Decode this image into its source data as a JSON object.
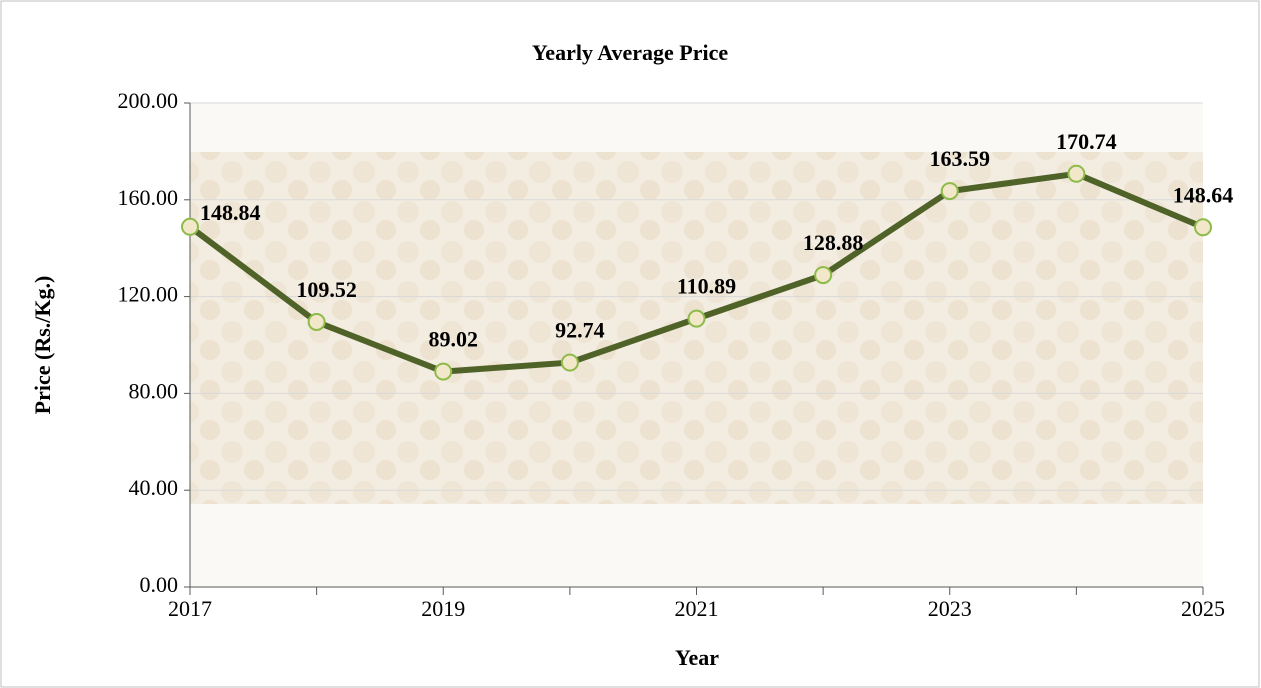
{
  "chart_data": {
    "type": "line",
    "title": "Yearly Average Price",
    "x_label": "Year",
    "y_label": "Price (Rs./Kg.)",
    "categories": [
      "2017",
      null,
      "2019",
      null,
      "2021",
      null,
      "2023",
      null,
      "2025"
    ],
    "series": [
      {
        "name": "Yearly Average Price",
        "color": "#4f6228",
        "values": [
          148.84,
          109.52,
          89.02,
          92.74,
          110.89,
          128.88,
          163.59,
          170.74,
          148.64
        ]
      }
    ],
    "ylim": [
      0,
      200
    ],
    "yticks": [
      {
        "value": 0,
        "label": "0.00"
      },
      {
        "value": 40,
        "label": "40.00"
      },
      {
        "value": 80,
        "label": "80.00"
      },
      {
        "value": 120,
        "label": "120.00"
      },
      {
        "value": 160,
        "label": "160.00"
      },
      {
        "value": 200,
        "label": "200.00"
      }
    ],
    "grid": true
  }
}
